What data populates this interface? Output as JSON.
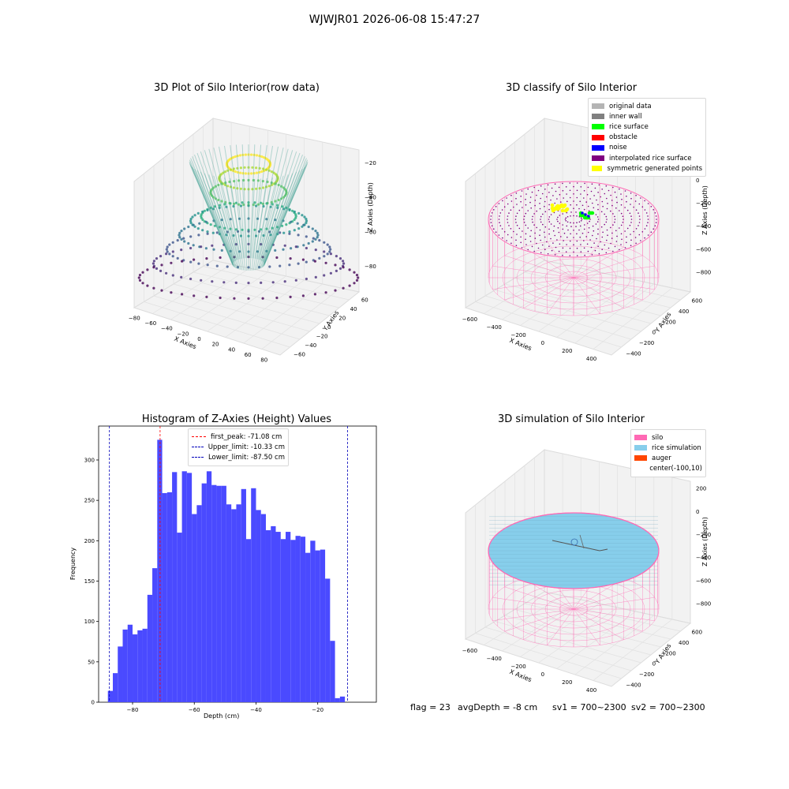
{
  "suptitle": "WJWJR01 2026-06-08 15:47:27",
  "chart_data": [
    {
      "type": "scatter",
      "subtype": "3d",
      "title": "3D Plot of Silo Interior(row data)",
      "xlabel": "X Axies",
      "ylabel": "Y Axies",
      "zlabel": "Z Axies (Depth)",
      "x_ticks": [
        "−80",
        "−60",
        "−40",
        "−20",
        "0",
        "20",
        "40",
        "60",
        "80"
      ],
      "y_ticks": [
        "−60",
        "−40",
        "−20",
        "0",
        "20",
        "40",
        "60"
      ],
      "z_ticks": [
        "−80",
        "−60",
        "−40",
        "−20"
      ],
      "xlim": [
        -85,
        85
      ],
      "ylim": [
        -65,
        65
      ],
      "zlim": [
        -95,
        -10
      ],
      "colormap": "viridis"
    },
    {
      "type": "scatter",
      "subtype": "3d",
      "title": "3D classify of Silo Interior",
      "xlabel": "X Axies",
      "ylabel": "Y Axies",
      "zlabel": "Z Axies (Depth)",
      "x_ticks": [
        "−600",
        "−400",
        "−200",
        "0",
        "200",
        "400"
      ],
      "y_ticks": [
        "−400",
        "−200",
        "0",
        "200",
        "400",
        "600"
      ],
      "z_ticks": [
        "−800",
        "−600",
        "−400",
        "−200",
        "0",
        "200"
      ],
      "legend": [
        {
          "label": "original data",
          "color": "#b4b4b4"
        },
        {
          "label": "inner wall",
          "color": "#808080"
        },
        {
          "label": "rice surface",
          "color": "#00ff00"
        },
        {
          "label": "obstacle",
          "color": "#ff0000"
        },
        {
          "label": "noise",
          "color": "#0000ff"
        },
        {
          "label": "interpolated rice surface",
          "color": "#800080"
        },
        {
          "label": "symmetric generated points",
          "color": "#ffff00"
        }
      ],
      "legend_position": "top-right"
    },
    {
      "type": "bar",
      "subtype": "histogram",
      "title": "Histogram of Z-Axies (Height) Values",
      "xlabel": "Depth (cm)",
      "ylabel": "Frequency",
      "xlim": [
        -91,
        -1
      ],
      "ylim": [
        0,
        342
      ],
      "bar_color": "#4a4aff",
      "bin_start": -88,
      "bin_width": 1.6,
      "values": [
        14,
        36,
        69,
        90,
        96,
        84,
        89,
        91,
        133,
        166,
        325,
        259,
        260,
        285,
        210,
        286,
        284,
        233,
        244,
        271,
        286,
        269,
        268,
        268,
        245,
        239,
        245,
        264,
        202,
        265,
        238,
        233,
        213,
        218,
        211,
        202,
        211,
        201,
        206,
        205,
        185,
        200,
        188,
        189,
        153,
        76,
        5,
        7
      ],
      "x_ticks": [
        -80,
        -60,
        -40,
        -20
      ],
      "x_tick_labels": [
        "−80",
        "−60",
        "−40",
        "−20"
      ],
      "y_ticks": [
        0,
        50,
        100,
        150,
        200,
        250,
        300
      ],
      "y_tick_labels": [
        "0",
        "50",
        "100",
        "150",
        "200",
        "250",
        "300"
      ],
      "vlines": [
        {
          "label": "first_peak: -71.08 cm",
          "x": -71.08,
          "color": "#ff0000"
        },
        {
          "label": "Upper_limit: -10.33 cm",
          "x": -10.33,
          "color": "#0000bb"
        },
        {
          "label": "Lower_limit: -87.50 cm",
          "x": -87.5,
          "color": "#0000bb"
        }
      ],
      "legend_position": "top-center"
    },
    {
      "type": "scatter",
      "subtype": "3d",
      "title": "3D simulation of Silo Interior",
      "xlabel": "X Axies",
      "ylabel": "Y Axies",
      "zlabel": "Z Axies (Depth)",
      "x_ticks": [
        "−600",
        "−400",
        "−200",
        "0",
        "200",
        "400"
      ],
      "y_ticks": [
        "−400",
        "−200",
        "0",
        "200",
        "400",
        "600"
      ],
      "z_ticks": [
        "−800",
        "−600",
        "−400",
        "−200",
        "0",
        "200"
      ],
      "legend": [
        {
          "label": "silo",
          "color": "#ff69b4"
        },
        {
          "label": "rice simulation",
          "color": "#87ceeb"
        },
        {
          "label": "auger",
          "color": "#ff4500"
        },
        {
          "label": "center(-100,10)",
          "color": ""
        }
      ],
      "legend_position": "top-right"
    }
  ],
  "footer": {
    "flag": "flag = 23",
    "avg_depth": "avgDepth = -8 cm",
    "sv1": "sv1 = 700~2300",
    "sv2": "sv2 = 700~2300"
  }
}
